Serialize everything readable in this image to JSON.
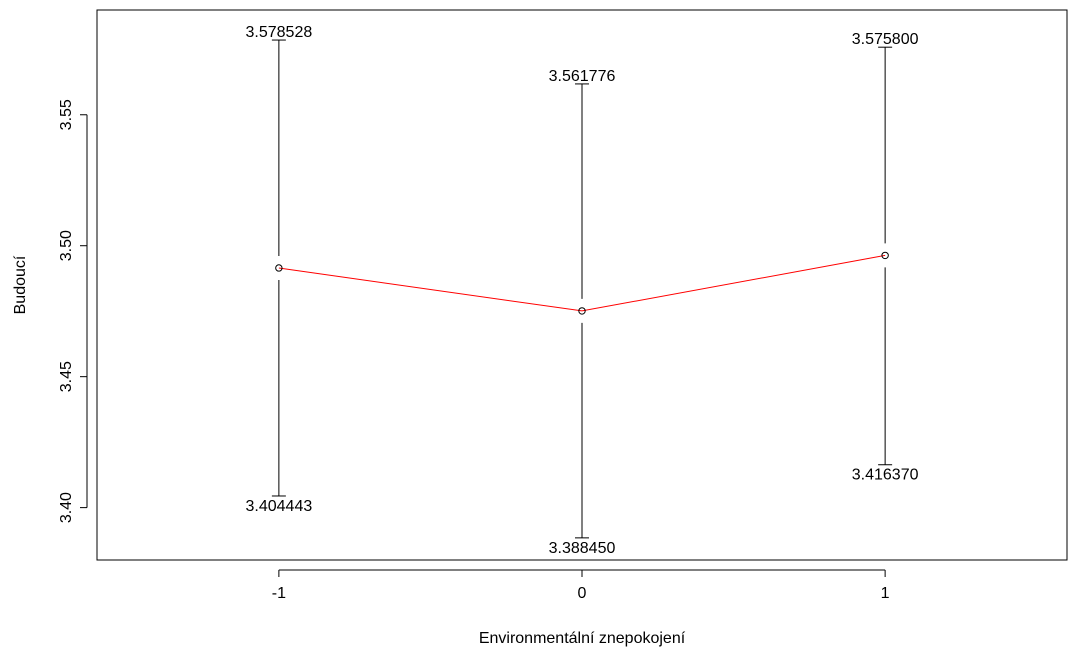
{
  "chart_data": {
    "type": "line",
    "title": "",
    "xlabel": "Environmentální znepokojení",
    "ylabel": "Budoucí",
    "categories": [
      "-1",
      "0",
      "1"
    ],
    "x": [
      -1,
      0,
      1
    ],
    "xlim": [
      -1.6,
      1.6
    ],
    "ylim": [
      3.38,
      3.59
    ],
    "yticks": [
      3.4,
      3.45,
      3.5,
      3.55
    ],
    "ytick_labels": [
      "3.40",
      "3.45",
      "3.50",
      "3.55"
    ],
    "grid": false,
    "series": [
      {
        "values": [
          3.4915,
          3.4751,
          3.4963
        ],
        "color": "#ff0000",
        "lower": [
          3.404443,
          3.38845,
          3.41637
        ],
        "upper": [
          3.578528,
          3.561776,
          3.5758
        ],
        "lower_labels": [
          "3.404443",
          "3.388450",
          "3.416370"
        ],
        "upper_labels": [
          "3.578528",
          "3.561776",
          "3.575800"
        ]
      }
    ]
  }
}
